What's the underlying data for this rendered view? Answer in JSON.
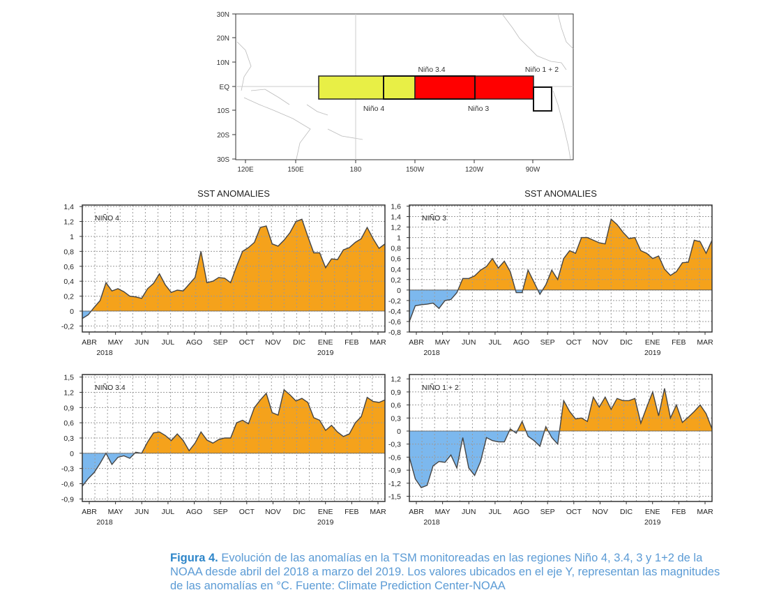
{
  "map": {
    "y_labels": [
      "30N",
      "20N",
      "10N",
      "EQ",
      "10S",
      "20S",
      "30S"
    ],
    "x_labels": [
      "120E",
      "150E",
      "180",
      "150W",
      "120W",
      "90W"
    ],
    "regions": [
      {
        "label": "Niño 4",
        "lon_range": "160E-150W",
        "lat_range": "5N-5S",
        "color": "#e8ef46"
      },
      {
        "label": "Niño 3.4",
        "lon_range": "170W-120W",
        "lat_range": "5N-5S",
        "color": "#e8ef46"
      },
      {
        "label": "Niño 3",
        "lon_range": "150W-90W",
        "lat_range": "5N-5S",
        "color": "#ff0000"
      },
      {
        "label": "Niño 1 + 2",
        "lon_range": "90W-80W",
        "lat_range": "0-10S",
        "color": "#ffffff"
      }
    ]
  },
  "colors": {
    "positive": "#f5a21b",
    "negative": "#7cb8ee",
    "line": "#444444",
    "caption": "#5b9bd5"
  },
  "chart_data": [
    {
      "type": "area",
      "title": "SST ANOMALIES",
      "panel_label": "NIÑO 4",
      "x_tick_labels": [
        "ABR",
        "MAY",
        "JUN",
        "JUL",
        "AGO",
        "SEP",
        "OCT",
        "NOV",
        "DIC",
        "ENE",
        "FEB",
        "MAR"
      ],
      "year_labels": [
        "2018",
        "2019"
      ],
      "y_ticks": [
        -0.2,
        0,
        0.2,
        0.4,
        0.6,
        0.8,
        1,
        1.2,
        1.4
      ],
      "y_tick_labels": [
        "-0,2",
        "0",
        "0,2",
        "0,4",
        "0,6",
        "0,8",
        "1",
        "1,2",
        "1,4"
      ],
      "ylim": [
        -0.28,
        1.42
      ],
      "values": [
        -0.1,
        -0.05,
        0.05,
        0.14,
        0.38,
        0.27,
        0.3,
        0.26,
        0.2,
        0.19,
        0.17,
        0.3,
        0.37,
        0.5,
        0.35,
        0.25,
        0.28,
        0.27,
        0.36,
        0.45,
        0.8,
        0.38,
        0.4,
        0.45,
        0.44,
        0.38,
        0.6,
        0.8,
        0.85,
        0.92,
        1.12,
        1.14,
        0.9,
        0.87,
        0.95,
        1.05,
        1.2,
        1.23,
        1.0,
        0.78,
        0.78,
        0.58,
        0.7,
        0.69,
        0.82,
        0.85,
        0.92,
        0.97,
        1.12,
        0.97,
        0.84,
        0.9
      ]
    },
    {
      "type": "area",
      "title": "SST ANOMALIES",
      "panel_label": "NIÑO 3",
      "x_tick_labels": [
        "ABR",
        "MAY",
        "JUN",
        "JUL",
        "AGO",
        "SEP",
        "OCT",
        "NOV",
        "DIC",
        "ENE",
        "FEB",
        "MAR"
      ],
      "year_labels": [
        "2018",
        "2019"
      ],
      "y_ticks": [
        -0.8,
        -0.6,
        -0.4,
        -0.2,
        0,
        0.2,
        0.4,
        0.6,
        0.8,
        1,
        1.2,
        1.4,
        1.6
      ],
      "y_tick_labels": [
        "-0,8",
        "-0,6",
        "-0,4",
        "-0,2",
        "0",
        "0,2",
        "0,4",
        "0,6",
        "0,8",
        "1",
        "1,2",
        "1,4",
        "1,6"
      ],
      "ylim": [
        -0.8,
        1.62
      ],
      "values": [
        -0.6,
        -0.3,
        -0.28,
        -0.27,
        -0.25,
        -0.35,
        -0.2,
        -0.18,
        -0.05,
        0.22,
        0.22,
        0.27,
        0.38,
        0.45,
        0.6,
        0.42,
        0.55,
        0.35,
        -0.05,
        -0.05,
        0.38,
        0.15,
        -0.08,
        0.1,
        0.38,
        0.2,
        0.6,
        0.75,
        0.7,
        1.0,
        1.0,
        0.95,
        0.9,
        0.88,
        1.35,
        1.25,
        1.1,
        0.98,
        1.0,
        0.75,
        0.7,
        0.6,
        0.65,
        0.4,
        0.28,
        0.35,
        0.52,
        0.53,
        0.95,
        0.92,
        0.7,
        0.95
      ]
    },
    {
      "type": "area",
      "title": "",
      "panel_label": "NIÑO 3.4",
      "x_tick_labels": [
        "ABR",
        "MAY",
        "JUN",
        "JUL",
        "AGO",
        "SEP",
        "OCT",
        "NOV",
        "DIC",
        "ENE",
        "FEB",
        "MAR"
      ],
      "year_labels": [
        "2018",
        "2019"
      ],
      "y_ticks": [
        -0.9,
        -0.6,
        -0.3,
        0,
        0.3,
        0.6,
        0.9,
        1.2,
        1.5
      ],
      "y_tick_labels": [
        "-0,9",
        "-0,6",
        "-0,3",
        "0",
        "0,3",
        "0,6",
        "0,9",
        "1,2",
        "1,5"
      ],
      "ylim": [
        -0.95,
        1.55
      ],
      "values": [
        -0.65,
        -0.5,
        -0.38,
        -0.2,
        0.0,
        -0.22,
        -0.08,
        -0.05,
        -0.1,
        0.02,
        0.0,
        0.22,
        0.4,
        0.42,
        0.35,
        0.25,
        0.38,
        0.25,
        0.05,
        0.2,
        0.42,
        0.26,
        0.2,
        0.27,
        0.3,
        0.3,
        0.6,
        0.65,
        0.58,
        0.9,
        1.05,
        1.18,
        0.8,
        0.75,
        1.25,
        1.15,
        1.03,
        1.08,
        1.0,
        0.7,
        0.65,
        0.45,
        0.55,
        0.42,
        0.33,
        0.38,
        0.6,
        0.72,
        1.1,
        1.02,
        1.0,
        1.05
      ]
    },
    {
      "type": "area",
      "title": "",
      "panel_label": "NIÑO 1 + 2",
      "x_tick_labels": [
        "ABR",
        "MAY",
        "JUN",
        "JUL",
        "AGO",
        "SEP",
        "OCT",
        "NOV",
        "DIC",
        "ENE",
        "FEB",
        "MAR"
      ],
      "year_labels": [
        "2018",
        "2019"
      ],
      "y_ticks": [
        -1.5,
        -1.2,
        -0.9,
        -0.6,
        -0.3,
        0,
        0.3,
        0.6,
        0.9,
        1.2
      ],
      "y_tick_labels": [
        "-1,5",
        "-1,2",
        "-0,9",
        "-0,6",
        "-0,3",
        "0",
        "0,3",
        "0,6",
        "0,9",
        "1,2"
      ],
      "ylim": [
        -1.62,
        1.3
      ],
      "values": [
        -0.6,
        -1.1,
        -1.3,
        -1.25,
        -0.8,
        -0.7,
        -0.72,
        -0.55,
        -0.85,
        -0.15,
        -0.85,
        -1.02,
        -0.7,
        -0.15,
        -0.22,
        -0.25,
        -0.25,
        0.05,
        -0.05,
        0.22,
        -0.12,
        -0.22,
        -0.35,
        0.1,
        -0.15,
        -0.3,
        0.7,
        0.45,
        0.28,
        0.3,
        0.22,
        0.78,
        0.55,
        0.78,
        0.5,
        0.75,
        0.7,
        0.7,
        0.75,
        0.18,
        0.55,
        0.9,
        0.35,
        0.98,
        0.3,
        0.6,
        0.2,
        0.32,
        0.45,
        0.6,
        0.4,
        0.05
      ]
    }
  ],
  "caption": {
    "bold": "Figura 4.",
    "text": " Evolución de las anomalías en la TSM monitoreadas en las regiones Niño 4, 3.4, 3 y 1+2 de la NOAA desde abril del 2018 a marzo del 2019. Los valores ubicados en el eje Y, representan las magnitudes de las anomalías en °C. Fuente: Climate Prediction Center-NOAA"
  }
}
